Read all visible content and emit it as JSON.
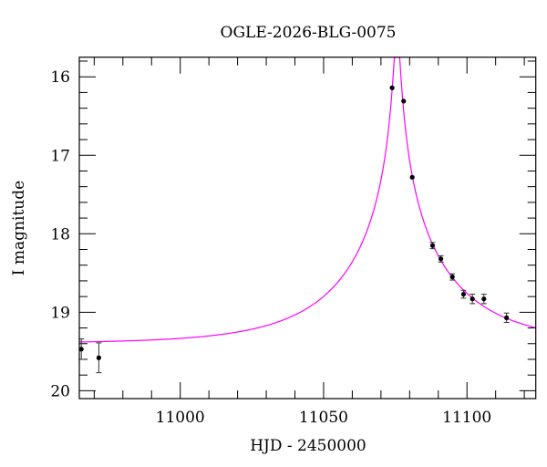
{
  "chart_data": {
    "type": "scatter",
    "title": "OGLE-2026-BLG-0075",
    "xlabel": "HJD - 2450000",
    "ylabel": "I magnitude",
    "xlim": [
      10964.8,
      11124
    ],
    "ylim": [
      20.1,
      15.75
    ],
    "y_inverted": true,
    "x_major_ticks": [
      11000,
      11050,
      11100
    ],
    "x_minor_step": 10,
    "y_major_ticks": [
      16,
      17,
      18,
      19,
      20
    ],
    "y_minor_step": 0.2,
    "grid": false,
    "points": [
      {
        "x": 10965.5,
        "y": 19.47,
        "err": 0.13
      },
      {
        "x": 10971.6,
        "y": 19.58,
        "err": 0.19
      },
      {
        "x": 11073.9,
        "y": 16.14,
        "err": 0.01
      },
      {
        "x": 11077.9,
        "y": 16.31,
        "err": 0.01
      },
      {
        "x": 11080.9,
        "y": 17.28,
        "err": 0.01
      },
      {
        "x": 11088.0,
        "y": 18.15,
        "err": 0.04
      },
      {
        "x": 11090.9,
        "y": 18.32,
        "err": 0.04
      },
      {
        "x": 11094.9,
        "y": 18.55,
        "err": 0.04
      },
      {
        "x": 11098.8,
        "y": 18.77,
        "err": 0.05
      },
      {
        "x": 11101.9,
        "y": 18.83,
        "err": 0.06
      },
      {
        "x": 11105.9,
        "y": 18.83,
        "err": 0.06
      },
      {
        "x": 11113.8,
        "y": 19.07,
        "err": 0.06
      }
    ],
    "model_curve": {
      "t0": 11075.6,
      "u0": 0.025,
      "tE": 38.5,
      "I_base": 19.4
    },
    "colors": {
      "points": "#000000",
      "model": "#ff00ff"
    }
  }
}
